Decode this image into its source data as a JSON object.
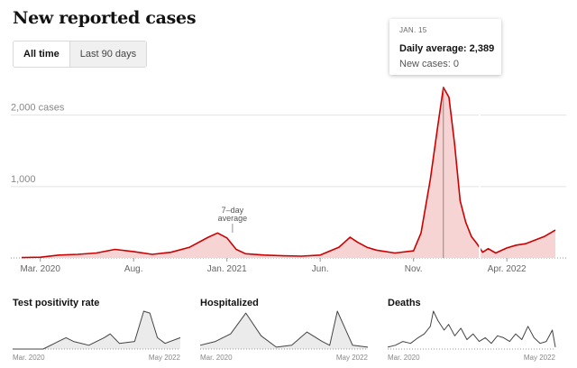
{
  "title": "New reported cases",
  "toggle": {
    "all_time": "All time",
    "last_90": "Last 90 days"
  },
  "tooltip": {
    "date": "JAN. 15",
    "daily_avg_label": "Daily average:",
    "daily_avg_value": "2,389",
    "new_cases_label": "New cases:",
    "new_cases_value": "0"
  },
  "annotation": {
    "line1": "7–day",
    "line2": "average"
  },
  "colors": {
    "accent": "#cc0000",
    "fill": "#f7d4d4",
    "grid": "#e2e2e2",
    "small_line": "#444444",
    "small_fill": "#ebebeb"
  },
  "chart_data": [
    {
      "type": "area",
      "title": "New reported cases",
      "y_tick_labels": [
        "2,000 cases",
        "1,000"
      ],
      "y_ticks": [
        2000,
        1000
      ],
      "ylim": [
        0,
        2400
      ],
      "x_tick_labels": [
        "Mar. 2020",
        "Aug.",
        "Jan. 2021",
        "Jun.",
        "Nov.",
        "Apr. 2022"
      ],
      "x_tick_positions": [
        1,
        6,
        11,
        16,
        21,
        26
      ],
      "xlim": [
        0,
        28.6
      ],
      "series": [
        {
          "name": "7-day average",
          "x": [
            0,
            1,
            2,
            3,
            4,
            5,
            6,
            7,
            8,
            9,
            10,
            10.5,
            11,
            11.5,
            12,
            13,
            14,
            15,
            16,
            17,
            17.6,
            18,
            18.5,
            19,
            20,
            21,
            21.4,
            21.9,
            22.3,
            22.6,
            22.9,
            23.2,
            23.5,
            23.8,
            24.1,
            24.4,
            24.7,
            25,
            25.4,
            26,
            26.5,
            27,
            27.5,
            28,
            28.6
          ],
          "values": [
            5,
            10,
            40,
            50,
            70,
            120,
            90,
            50,
            80,
            150,
            290,
            350,
            280,
            120,
            60,
            40,
            30,
            25,
            40,
            150,
            290,
            220,
            150,
            110,
            70,
            100,
            350,
            1100,
            1850,
            2389,
            2250,
            1600,
            800,
            500,
            300,
            200,
            80,
            130,
            70,
            140,
            180,
            200,
            250,
            300,
            390
          ]
        }
      ],
      "annotation": {
        "text": "7–day average",
        "x": 11.3
      },
      "highlight": {
        "x": 22.6,
        "label": "JAN. 15"
      }
    },
    {
      "type": "area",
      "title": "Test positivity rate",
      "x_tick_labels": [
        "Mar. 2020",
        "May 2022"
      ],
      "x": [
        0,
        2,
        3,
        3.5,
        4,
        5,
        6,
        6.4,
        7,
        8,
        8.6,
        9,
        9.5,
        10,
        11
      ],
      "values": [
        0,
        0,
        0.2,
        0.3,
        0.2,
        0.1,
        0.3,
        0.4,
        0.15,
        0.2,
        1.0,
        0.95,
        0.3,
        0.15,
        0.3
      ],
      "ylim": [
        0,
        1
      ]
    },
    {
      "type": "area",
      "title": "Hospitalized",
      "x_tick_labels": [
        "Mar. 2020",
        "May 2022"
      ],
      "x": [
        0,
        1,
        2,
        3,
        4,
        5,
        6,
        7,
        8,
        8.5,
        9,
        10,
        11
      ],
      "values": [
        0.1,
        0.2,
        0.4,
        0.95,
        0.35,
        0.05,
        0.1,
        0.45,
        0.2,
        0.1,
        1.0,
        0.1,
        0.05
      ],
      "ylim": [
        0,
        1
      ]
    },
    {
      "type": "line",
      "title": "Deaths",
      "x_tick_labels": [
        "Mar. 2020",
        "May 2022"
      ],
      "x": [
        0,
        0.5,
        1,
        1.5,
        2,
        2.4,
        2.8,
        3,
        3.3,
        3.7,
        4,
        4.4,
        4.8,
        5.2,
        5.6,
        6,
        6.4,
        6.8,
        7.2,
        7.6,
        8,
        8.4,
        8.8,
        9.2,
        9.6,
        10,
        10.4,
        10.8,
        11
      ],
      "values": [
        0.05,
        0.1,
        0.2,
        0.15,
        0.3,
        0.4,
        0.6,
        1.0,
        0.75,
        0.5,
        0.65,
        0.35,
        0.55,
        0.25,
        0.4,
        0.2,
        0.3,
        0.15,
        0.35,
        0.3,
        0.2,
        0.4,
        0.25,
        0.6,
        0.3,
        0.15,
        0.2,
        0.5,
        0.05
      ],
      "ylim": [
        0,
        1
      ]
    }
  ]
}
